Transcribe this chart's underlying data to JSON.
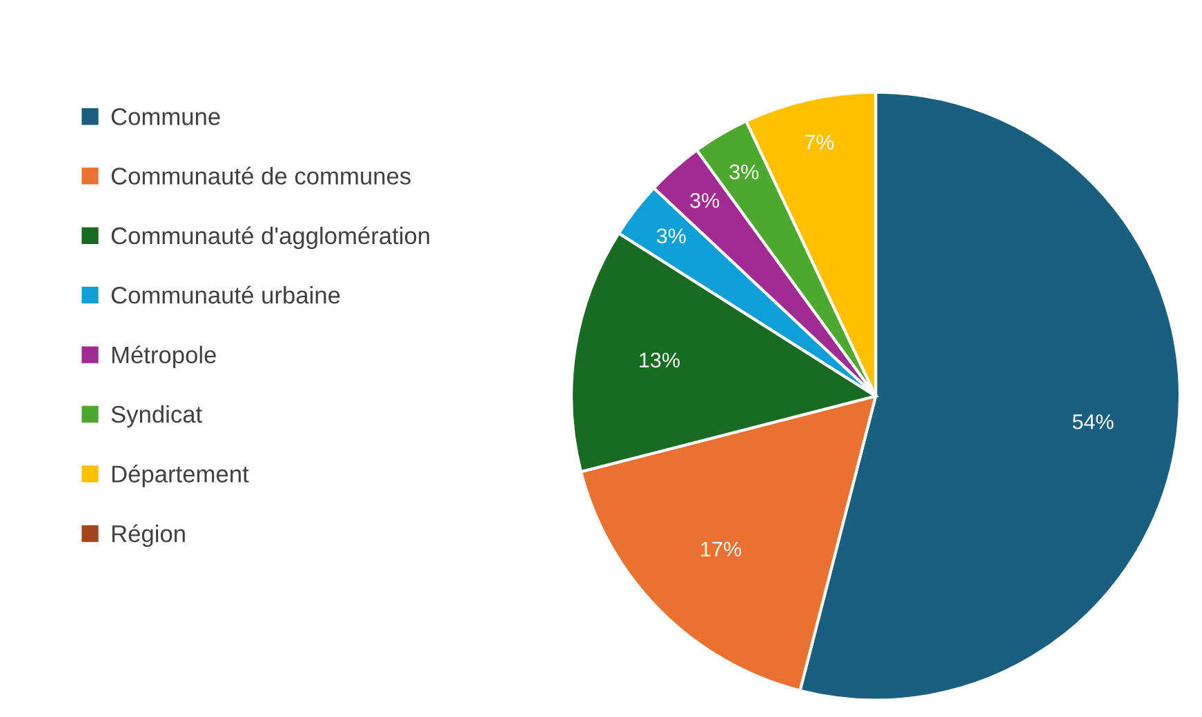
{
  "chart_data": {
    "type": "pie",
    "categories": [
      "Commune",
      "Communauté de communes",
      "Communauté d'agglomération",
      "Communauté urbaine",
      "Métropole",
      "Syndicat",
      "Département",
      "Région"
    ],
    "values": [
      54,
      17,
      13,
      3,
      3,
      3,
      7,
      0
    ],
    "colors": [
      "#1a5f80",
      "#e97132",
      "#196b24",
      "#0f9ed5",
      "#a02b93",
      "#4ea72e",
      "#ffc000",
      "#a5451a"
    ],
    "value_labels": [
      "54%",
      "17%",
      "13%",
      "3%",
      "3%",
      "3%",
      "7%",
      null
    ],
    "legend": "left"
  }
}
